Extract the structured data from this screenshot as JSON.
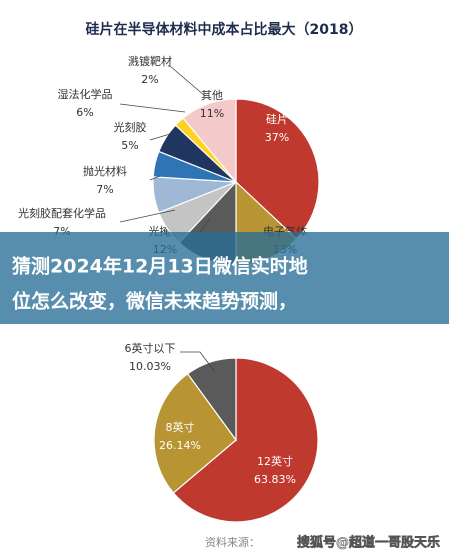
{
  "chart_data": [
    {
      "type": "pie",
      "title": "硅片在半导体材料中成本占比最大（2018）",
      "categories": [
        "硅片",
        "电子气体",
        "光掩膜",
        "光刻胶配套化学品",
        "抛光材料",
        "光刻胶",
        "湿法化学品",
        "溅镀靶材",
        "其他"
      ],
      "values": [
        37,
        13,
        12,
        7,
        7,
        5,
        6,
        2,
        11
      ],
      "colors": [
        "#c0392f",
        "#b89433",
        "#5a5a5a",
        "#c4c4c4",
        "#9fb8d6",
        "#2f75b5",
        "#1f3660",
        "#ffd21f",
        "#f4c9c9"
      ]
    },
    {
      "type": "pie",
      "categories": [
        "12英寸",
        "8英寸",
        "6英寸以下"
      ],
      "values": [
        63.83,
        26.14,
        10.03
      ],
      "colors": [
        "#c0392f",
        "#b89433",
        "#5a5a5a"
      ]
    }
  ],
  "headline": [
    "猜测2024年12月13日微信实时地",
    "位怎么改变，微信未来趋势预测，"
  ],
  "source": "资料来源：",
  "watermark": "搜狐号@超道一哥股天乐"
}
